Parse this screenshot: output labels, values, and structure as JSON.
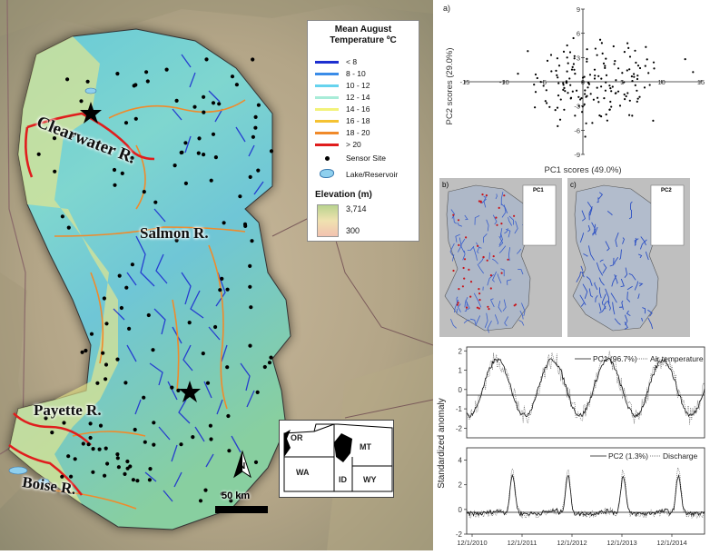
{
  "map": {
    "rivers": [
      {
        "name": "Clearwater R."
      },
      {
        "name": "Salmon R."
      },
      {
        "name": "Payette R."
      },
      {
        "name": "Boise R."
      }
    ],
    "legend": {
      "title_line1": "Mean August",
      "title_line2": "Temperature ºC",
      "classes": [
        {
          "label": "< 8",
          "color": "#1d2fd0"
        },
        {
          "label": "8 - 10",
          "color": "#3a8ce8"
        },
        {
          "label": "10 - 12",
          "color": "#66d3ee"
        },
        {
          "label": "12 - 14",
          "color": "#a8ecd8"
        },
        {
          "label": "14 - 16",
          "color": "#f2f27a"
        },
        {
          "label": "16 - 18",
          "color": "#f5c232"
        },
        {
          "label": "18 - 20",
          "color": "#f08a2a"
        },
        {
          "label": "> 20",
          "color": "#e01d1d"
        }
      ],
      "sensor_label": "Sensor Site",
      "lake_label": "Lake/Reservoir",
      "elevation_title": "Elevation (m)",
      "elevation_max": "3,714",
      "elevation_min": "300"
    },
    "scale": "50 km",
    "north": "N",
    "inset_states": [
      "OR",
      "MT",
      "WA",
      "ID",
      "WY"
    ]
  },
  "panel_a": {
    "letter": "a)",
    "xlabel": "PC1 scores (49.0%)",
    "ylabel": "PC2 scores (29.0%)",
    "x_ticks": [
      "-15",
      "-10",
      "-5",
      "0",
      "5",
      "10",
      "15"
    ],
    "y_ticks": [
      "9",
      "6",
      "3",
      "-3",
      "-6",
      "-9"
    ]
  },
  "panel_b": {
    "letter": "b)",
    "legend_title": "PC1"
  },
  "panel_c": {
    "letter": "c)",
    "legend_title": "PC2"
  },
  "panel_ts1": {
    "legend_solid": "PC1 (96.7%)",
    "legend_dotted": "Air temperature",
    "y_ticks": [
      "2",
      "1",
      "0",
      "-1",
      "-2"
    ]
  },
  "panel_ts2": {
    "legend_solid": "PC2 (1.3%)",
    "legend_dotted": "Discharge",
    "y_ticks": [
      "4",
      "2",
      "0",
      "-2"
    ]
  },
  "shared_ylabel": "Standardized anomaly",
  "x_dates": [
    "12/1/2010",
    "12/1/2011",
    "12/1/2012",
    "12/1/2013",
    "12/1/2014"
  ],
  "chart_data": [
    {
      "type": "scatter",
      "panel": "a",
      "xlabel": "PC1 scores (49.0%)",
      "ylabel": "PC2 scores (29.0%)",
      "xlim": [
        -15,
        15
      ],
      "ylim": [
        -9,
        9
      ],
      "x": [
        -3,
        -2.5,
        -2,
        -1.5,
        -1,
        -0.5,
        0,
        0.5,
        1,
        1.5,
        2,
        2.5,
        3,
        3.5,
        4,
        4.5,
        5,
        6,
        7,
        8,
        9,
        -4,
        -5,
        -6,
        -7,
        13,
        14,
        -3.5,
        -2,
        -1,
        0.3,
        1.2,
        2.2,
        3.1,
        4.2,
        5.5,
        -2.8,
        -1.7,
        0.8,
        1.8,
        2.8,
        -0.8,
        -4.5,
        6.5,
        8.5,
        -1.2,
        0.2,
        1.6,
        3.6,
        -3.2
      ],
      "y": [
        2,
        -1,
        3,
        -2,
        1,
        -3,
        0.5,
        2.5,
        -1.5,
        1.5,
        -2.5,
        3.5,
        0.8,
        -0.8,
        2.2,
        -1.2,
        1.1,
        3.1,
        -2.1,
        4.3,
        2.4,
        1.3,
        -0.5,
        0.9,
        3.8,
        2.8,
        1.2,
        -3.5,
        4.5,
        -4.2,
        -6.8,
        -5.1,
        5.2,
        -4.8,
        0.2,
        -1.8,
        -2.2,
        0.4,
        -0.3,
        3.3,
        1.7,
        -1.1,
        2.6,
        0.6,
        -0.4,
        5.4,
        -2.8,
        4.1,
        -3.1,
        -5.5
      ]
    },
    {
      "type": "line",
      "panel": "time-series-1",
      "ylim": [
        -2.5,
        2.2
      ],
      "series": [
        {
          "name": "PC1 (96.7%)"
        },
        {
          "name": "Air temperature"
        }
      ]
    },
    {
      "type": "line",
      "panel": "time-series-2",
      "ylim": [
        -2,
        5
      ],
      "series": [
        {
          "name": "PC2 (1.3%)"
        },
        {
          "name": "Discharge"
        }
      ]
    }
  ]
}
